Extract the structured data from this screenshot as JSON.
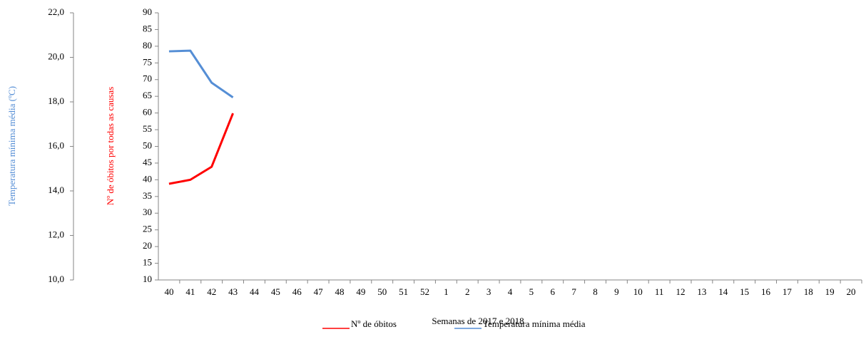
{
  "chart_data": {
    "type": "line",
    "xlabel": "Semanas de 2017 e 2018",
    "ylabel": "Nº de óbitos por todas as causas",
    "y2label": "Temperatura mínima média (ºC)",
    "categories": [
      "40",
      "41",
      "42",
      "43",
      "44",
      "45",
      "46",
      "47",
      "48",
      "49",
      "50",
      "51",
      "52",
      "1",
      "2",
      "3",
      "4",
      "5",
      "6",
      "7",
      "8",
      "9",
      "10",
      "11",
      "12",
      "13",
      "14",
      "15",
      "16",
      "17",
      "18",
      "19",
      "20"
    ],
    "series": [
      {
        "name": "Nº de óbitos",
        "color": "#ff0000",
        "values": [
          38.8,
          40,
          43.9,
          59.9,
          null,
          null,
          null,
          null,
          null,
          null,
          null,
          null,
          null,
          null,
          null,
          null,
          null,
          null,
          null,
          null,
          null,
          null,
          null,
          null,
          null,
          null,
          null,
          null,
          null,
          null,
          null,
          null,
          null
        ]
      },
      {
        "name": "Temperatura mínima média",
        "color": "#558ed5",
        "axis": "y2",
        "values": [
          20.27,
          20.3,
          18.86,
          18.2,
          null,
          null,
          null,
          null,
          null,
          null,
          null,
          null,
          null,
          null,
          null,
          null,
          null,
          null,
          null,
          null,
          null,
          null,
          null,
          null,
          null,
          null,
          null,
          null,
          null,
          null,
          null,
          null,
          null
        ]
      }
    ],
    "ylim": [
      10,
      90
    ],
    "yticks": [
      10,
      15,
      20,
      25,
      30,
      35,
      40,
      45,
      50,
      55,
      60,
      65,
      70,
      75,
      80,
      85,
      90
    ],
    "y2lim": [
      10,
      22
    ],
    "y2ticks": [
      {
        "value": 10,
        "label": "10,0"
      },
      {
        "value": 12,
        "label": "12,0"
      },
      {
        "value": 14,
        "label": "14,0"
      },
      {
        "value": 16,
        "label": "16,0"
      },
      {
        "value": 18,
        "label": "18,0"
      },
      {
        "value": 20,
        "label": "20,0"
      },
      {
        "value": 22,
        "label": "22,0"
      }
    ],
    "legend": "bottom"
  }
}
